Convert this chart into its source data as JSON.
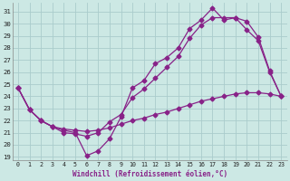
{
  "xlabel": "Windchill (Refroidissement éolien,°C)",
  "background_color": "#cce8e4",
  "grid_color": "#aacccc",
  "line_color": "#882288",
  "xlim": [
    -0.5,
    23.5
  ],
  "ylim": [
    18.7,
    31.7
  ],
  "yticks": [
    19,
    20,
    21,
    22,
    23,
    24,
    25,
    26,
    27,
    28,
    29,
    30,
    31
  ],
  "xticks": [
    0,
    1,
    2,
    3,
    4,
    5,
    6,
    7,
    8,
    9,
    10,
    11,
    12,
    13,
    14,
    15,
    16,
    17,
    18,
    19,
    20,
    21,
    22,
    23
  ],
  "line1_x": [
    0,
    1,
    2,
    3,
    4,
    5,
    6,
    7,
    8,
    9,
    10,
    11,
    12,
    13,
    14,
    15,
    16,
    17,
    18,
    19,
    20,
    21,
    22,
    23
  ],
  "line1_y": [
    24.7,
    22.9,
    22.0,
    21.5,
    21.2,
    21.0,
    19.1,
    19.5,
    20.5,
    22.3,
    24.7,
    25.3,
    26.7,
    27.2,
    28.0,
    29.6,
    30.3,
    31.3,
    30.3,
    30.5,
    30.2,
    28.9,
    26.1,
    24.0
  ],
  "line2_x": [
    0,
    1,
    2,
    3,
    4,
    5,
    6,
    7,
    8,
    9,
    10,
    11,
    12,
    13,
    14,
    15,
    16,
    17,
    18,
    19,
    20,
    21,
    22,
    23
  ],
  "line2_y": [
    24.7,
    22.9,
    22.0,
    21.5,
    21.0,
    20.9,
    20.7,
    21.0,
    21.9,
    22.5,
    23.9,
    24.6,
    25.5,
    26.4,
    27.3,
    28.8,
    29.9,
    30.5,
    30.5,
    30.5,
    29.5,
    28.6,
    26.0,
    24.0
  ],
  "line3_x": [
    0,
    1,
    2,
    3,
    4,
    5,
    6,
    7,
    8,
    9,
    10,
    11,
    12,
    13,
    14,
    15,
    16,
    17,
    18,
    19,
    20,
    21,
    22,
    23
  ],
  "line3_y": [
    24.7,
    22.9,
    22.0,
    21.5,
    21.3,
    21.2,
    21.1,
    21.2,
    21.4,
    21.7,
    22.0,
    22.2,
    22.5,
    22.7,
    23.0,
    23.3,
    23.6,
    23.8,
    24.0,
    24.2,
    24.3,
    24.3,
    24.2,
    24.0
  ]
}
